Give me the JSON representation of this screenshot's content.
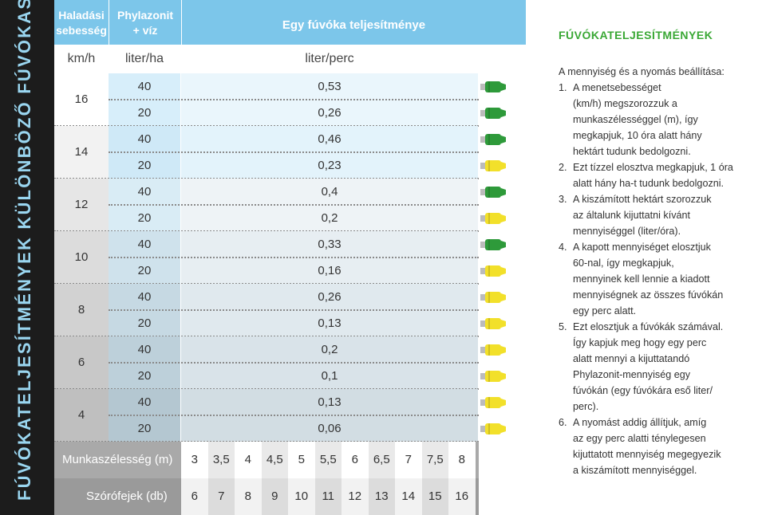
{
  "side_title": "FÚVÓKATELJESÍTMÉNYEK KÜLÖNBÖZŐ FÚVÓKASZÁMOKKAL",
  "header": {
    "col1_line1": "Haladási",
    "col1_line2": "sebesség",
    "col2_line1": "Phylazonit",
    "col2_line2": "+ víz",
    "col3": "Egy fúvóka teljesítménye"
  },
  "units": {
    "speed": "km/h",
    "volume": "liter/ha",
    "flow": "liter/perc"
  },
  "rows": [
    {
      "speed": "16",
      "pairs": [
        {
          "v": "40",
          "f": "0,53",
          "nozzle": "green"
        },
        {
          "v": "20",
          "f": "0,26",
          "nozzle": "green"
        }
      ]
    },
    {
      "speed": "14",
      "pairs": [
        {
          "v": "40",
          "f": "0,46",
          "nozzle": "green"
        },
        {
          "v": "20",
          "f": "0,23",
          "nozzle": "yellow"
        }
      ]
    },
    {
      "speed": "12",
      "pairs": [
        {
          "v": "40",
          "f": "0,4",
          "nozzle": "green"
        },
        {
          "v": "20",
          "f": "0,2",
          "nozzle": "yellow"
        }
      ]
    },
    {
      "speed": "10",
      "pairs": [
        {
          "v": "40",
          "f": "0,33",
          "nozzle": "green"
        },
        {
          "v": "20",
          "f": "0,16",
          "nozzle": "yellow"
        }
      ]
    },
    {
      "speed": "8",
      "pairs": [
        {
          "v": "40",
          "f": "0,26",
          "nozzle": "yellow"
        },
        {
          "v": "20",
          "f": "0,13",
          "nozzle": "yellow"
        }
      ]
    },
    {
      "speed": "6",
      "pairs": [
        {
          "v": "40",
          "f": "0,2",
          "nozzle": "yellow"
        },
        {
          "v": "20",
          "f": "0,1",
          "nozzle": "yellow"
        }
      ]
    },
    {
      "speed": "4",
      "pairs": [
        {
          "v": "40",
          "f": "0,13",
          "nozzle": "yellow"
        },
        {
          "v": "20",
          "f": "0,06",
          "nozzle": "yellow"
        }
      ]
    }
  ],
  "footer": {
    "width_label": "Munkaszélesség (m)",
    "widths": [
      "3",
      "3,5",
      "4",
      "4,5",
      "5",
      "5,5",
      "6",
      "6,5",
      "7",
      "7,5",
      "8"
    ],
    "nozzles_label": "Szórófejek (db)",
    "nozzles": [
      "6",
      "7",
      "8",
      "9",
      "10",
      "11",
      "12",
      "13",
      "14",
      "15",
      "16"
    ]
  },
  "colors": {
    "green": "#2e9a3a",
    "yellow": "#f2e02a",
    "header": "#7cc6ea",
    "title": "#3aa835"
  },
  "right": {
    "title": "FÚVÓKATELJESÍTMÉNYEK",
    "intro": "A mennyiség és a nyomás beállítása:",
    "steps": [
      {
        "n": "1.",
        "lines": [
          "A menetsebességet",
          "(km/h) megszorozzuk a",
          "munkaszélességgel (m), így",
          "megkapjuk, 10 óra alatt hány",
          "hektárt tudunk bedolgozni."
        ]
      },
      {
        "n": "2.",
        "lines": [
          "Ezt tízzel elosztva megkapjuk, 1 óra",
          "alatt hány ha-t tudunk bedolgozni."
        ]
      },
      {
        "n": "3.",
        "lines": [
          "A kiszámított hektárt szorozzuk",
          "az általunk kijuttatni kívánt",
          "mennyiséggel (liter/óra)."
        ]
      },
      {
        "n": "4.",
        "lines": [
          "A kapott mennyiséget elosztjuk",
          "60-nal, így megkapjuk,",
          "mennyinek kell lennie a kiadott",
          "mennyiségnek az összes fúvókán",
          "egy perc alatt."
        ]
      },
      {
        "n": "5.",
        "lines": [
          "Ezt elosztjuk a fúvókák számával.",
          "Így kapjuk meg hogy egy perc",
          "alatt mennyi a kijuttatandó",
          "Phylazonit-mennyiség egy",
          "fúvókán (egy fúvókára eső liter/",
          "perc)."
        ]
      },
      {
        "n": "6.",
        "lines": [
          "A nyomást addig állítjuk, amíg",
          "az egy perc alatti ténylegesen",
          "kijuttatott mennyiség megegyezik",
          "a kiszámított mennyiséggel."
        ]
      }
    ]
  }
}
